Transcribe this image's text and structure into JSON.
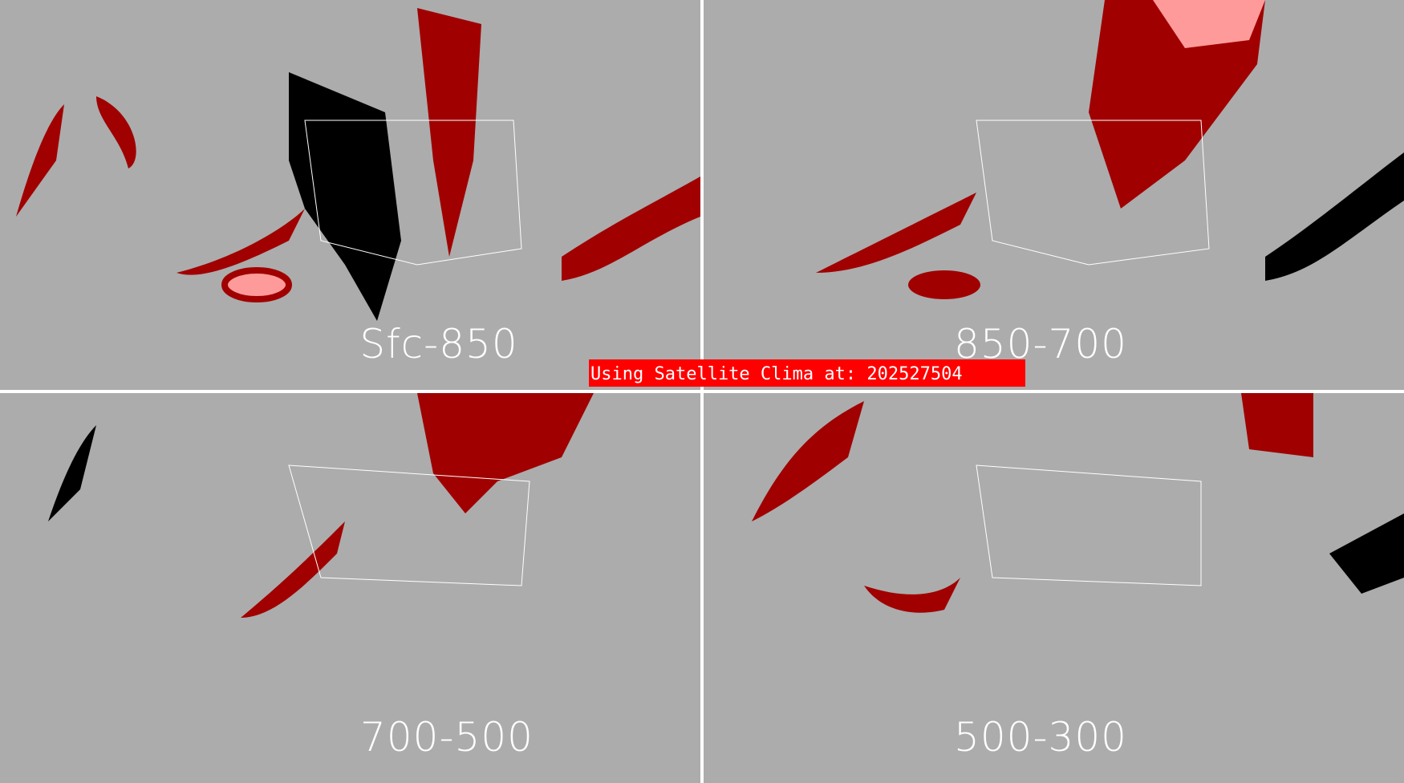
{
  "panels": [
    {
      "label": "Sfc-850"
    },
    {
      "label": "850-700"
    },
    {
      "label": "700-500"
    },
    {
      "label": "500-300"
    }
  ],
  "banner": {
    "text": "Using Satellite Clima at: 202527504",
    "color": "#ff0000"
  },
  "colors": {
    "background": "#acacac",
    "dark_red": "#a00000",
    "muted_red": "#8c6464",
    "pink": "#ff9a9a",
    "black": "#000000",
    "borders": "#ffffff"
  }
}
